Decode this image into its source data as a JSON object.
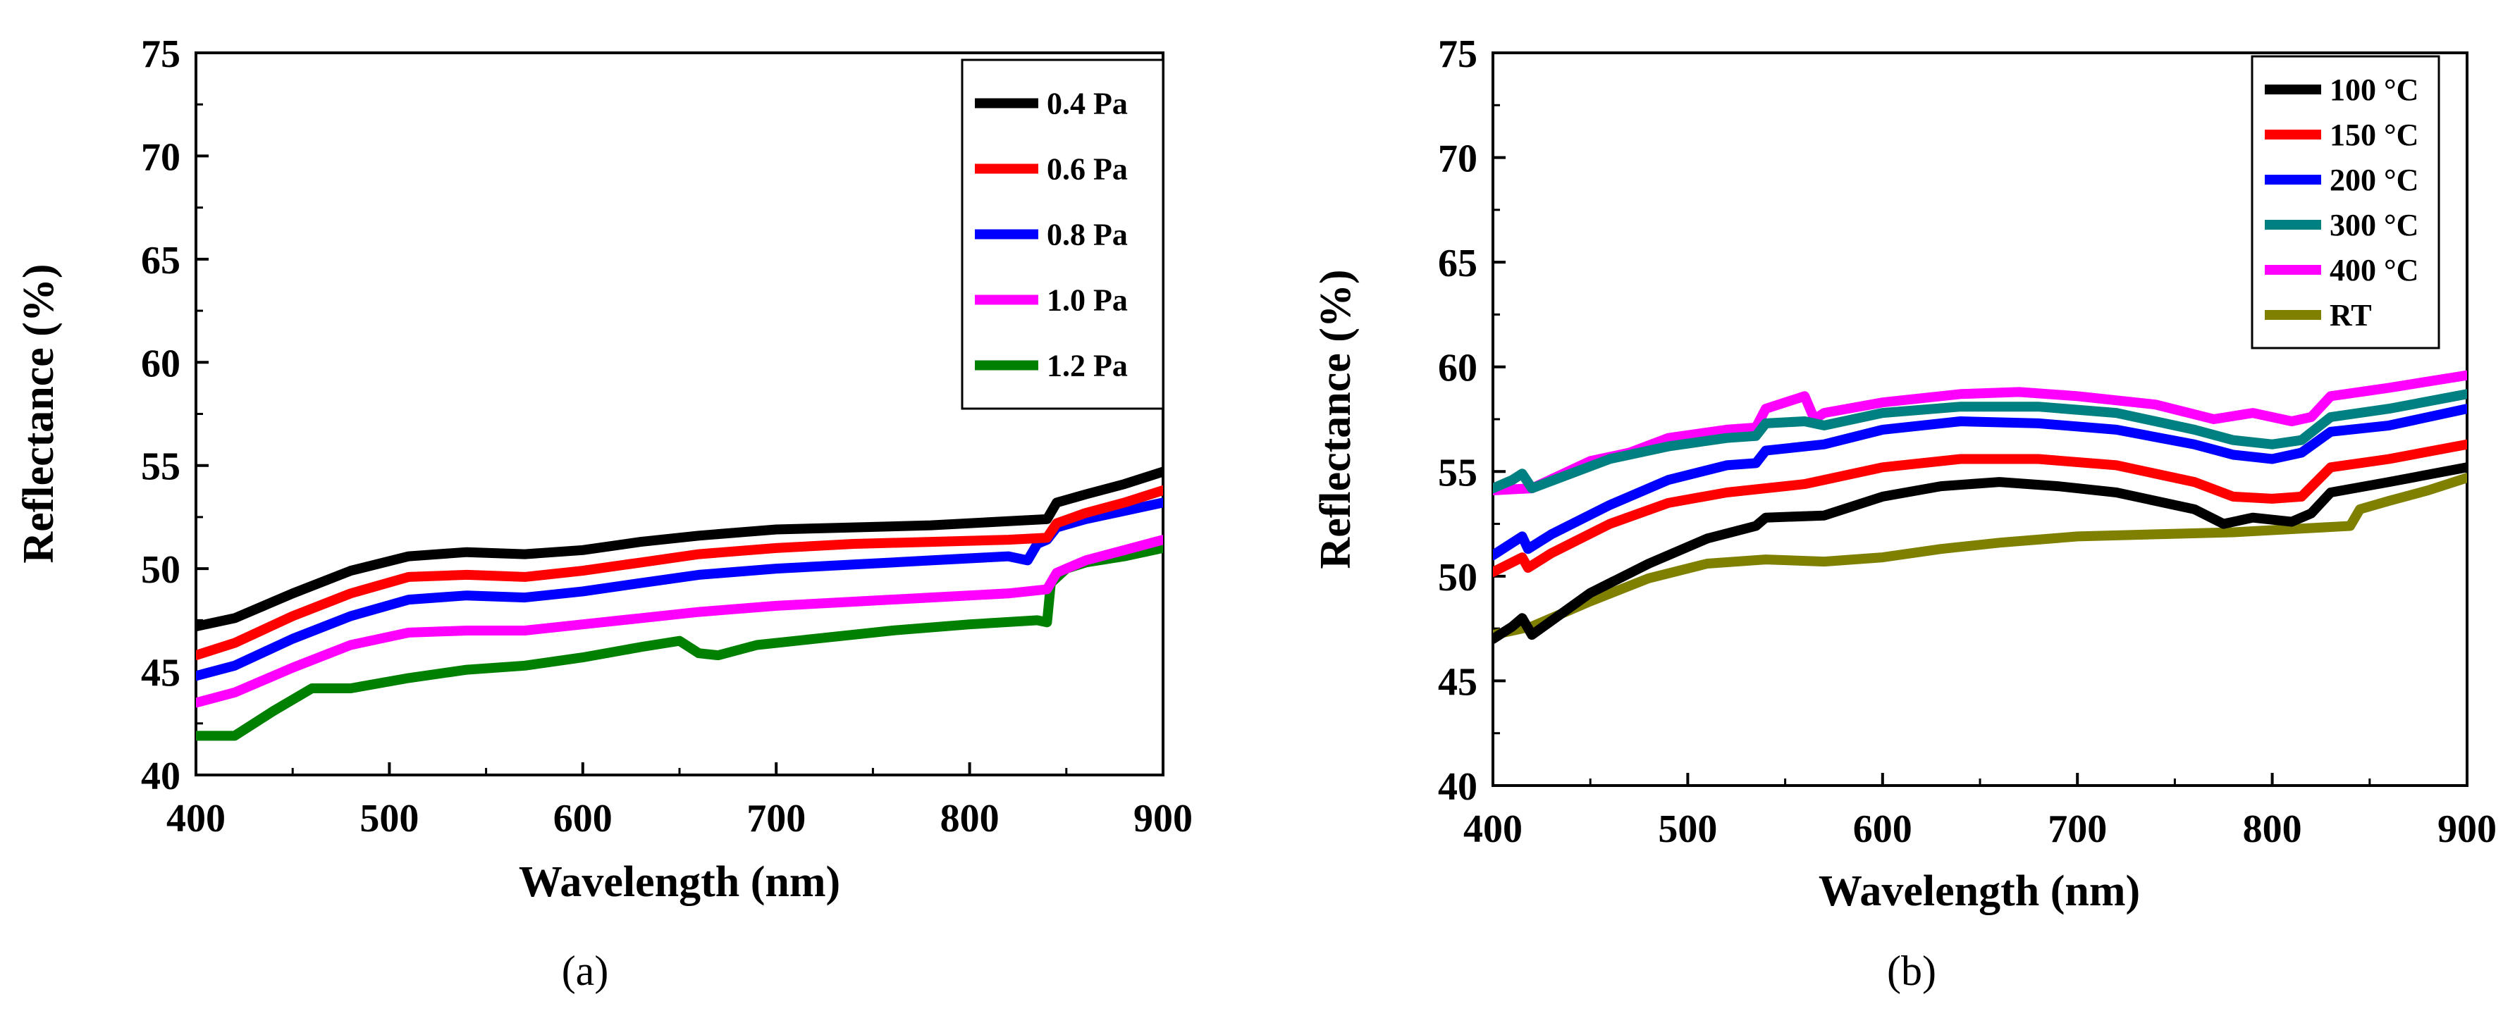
{
  "chart_data": [
    {
      "type": "line",
      "panel_label": "(a)",
      "xlabel": "Wavelength (nm)",
      "ylabel": "Reflectance (%)",
      "xlim": [
        400,
        900
      ],
      "ylim": [
        40,
        75
      ],
      "xticks": [
        400,
        500,
        600,
        700,
        800,
        900
      ],
      "yticks": [
        40,
        45,
        50,
        55,
        60,
        65,
        70,
        75
      ],
      "legend_position": "top-right",
      "grid": false,
      "series": [
        {
          "name": "0.4 Pa",
          "color": "#000000",
          "x": [
            400,
            420,
            450,
            480,
            510,
            540,
            570,
            600,
            630,
            660,
            700,
            740,
            780,
            820,
            840,
            845,
            860,
            880,
            900
          ],
          "y": [
            47.2,
            47.6,
            48.8,
            49.9,
            50.6,
            50.8,
            50.7,
            50.9,
            51.3,
            51.6,
            51.9,
            52.0,
            52.1,
            52.3,
            52.4,
            53.2,
            53.6,
            54.1,
            54.7
          ]
        },
        {
          "name": "0.6 Pa",
          "color": "#ff0000",
          "x": [
            400,
            420,
            450,
            480,
            510,
            540,
            570,
            600,
            630,
            660,
            700,
            740,
            780,
            820,
            840,
            845,
            860,
            880,
            900
          ],
          "y": [
            45.8,
            46.4,
            47.7,
            48.8,
            49.6,
            49.7,
            49.6,
            49.9,
            50.3,
            50.7,
            51.0,
            51.2,
            51.3,
            51.4,
            51.5,
            52.2,
            52.7,
            53.2,
            53.8
          ]
        },
        {
          "name": "0.8 Pa",
          "color": "#0000ff",
          "x": [
            400,
            420,
            450,
            480,
            510,
            540,
            570,
            600,
            630,
            660,
            700,
            740,
            780,
            820,
            830,
            835,
            840,
            845,
            860,
            880,
            900
          ],
          "y": [
            44.8,
            45.3,
            46.6,
            47.7,
            48.5,
            48.7,
            48.6,
            48.9,
            49.3,
            49.7,
            50.0,
            50.2,
            50.4,
            50.6,
            50.4,
            51.2,
            51.4,
            52.0,
            52.4,
            52.8,
            53.2
          ]
        },
        {
          "name": "1.0 Pa",
          "color": "#ff00ff",
          "x": [
            400,
            420,
            450,
            480,
            510,
            540,
            570,
            600,
            630,
            660,
            700,
            740,
            780,
            820,
            840,
            845,
            860,
            880,
            900
          ],
          "y": [
            43.5,
            44.0,
            45.2,
            46.3,
            46.9,
            47.0,
            47.0,
            47.3,
            47.6,
            47.9,
            48.2,
            48.4,
            48.6,
            48.8,
            49.0,
            49.8,
            50.4,
            50.9,
            51.4
          ]
        },
        {
          "name": "1.2 Pa",
          "color": "#008000",
          "x": [
            400,
            420,
            440,
            460,
            480,
            510,
            540,
            570,
            600,
            630,
            650,
            660,
            670,
            690,
            720,
            760,
            800,
            835,
            840,
            842,
            850,
            860,
            880,
            900
          ],
          "y": [
            41.9,
            41.9,
            43.1,
            44.2,
            44.2,
            44.7,
            45.1,
            45.3,
            45.7,
            46.2,
            46.5,
            45.9,
            45.8,
            46.3,
            46.6,
            47.0,
            47.3,
            47.5,
            47.4,
            49.3,
            50.0,
            50.3,
            50.6,
            51.0
          ]
        }
      ]
    },
    {
      "type": "line",
      "panel_label": "(b)",
      "xlabel": "Wavelength (nm)",
      "ylabel": "Reflectance (%)",
      "xlim": [
        400,
        900
      ],
      "ylim": [
        40,
        75
      ],
      "xticks": [
        400,
        500,
        600,
        700,
        800,
        900
      ],
      "yticks": [
        40,
        45,
        50,
        55,
        60,
        65,
        70,
        75
      ],
      "legend_position": "top-right",
      "grid": false,
      "series": [
        {
          "name": "100 °C",
          "color": "#000000",
          "x": [
            400,
            410,
            415,
            420,
            450,
            480,
            510,
            535,
            540,
            570,
            600,
            630,
            660,
            690,
            720,
            760,
            775,
            790,
            810,
            820,
            830,
            860,
            900
          ],
          "y": [
            47.0,
            47.6,
            48.0,
            47.2,
            49.2,
            50.6,
            51.8,
            52.4,
            52.8,
            52.9,
            53.8,
            54.3,
            54.5,
            54.3,
            54.0,
            53.2,
            52.5,
            52.8,
            52.6,
            53.0,
            54.0,
            54.5,
            55.2
          ]
        },
        {
          "name": "150 °C",
          "color": "#ff0000",
          "x": [
            400,
            415,
            418,
            430,
            460,
            490,
            520,
            560,
            600,
            640,
            680,
            720,
            760,
            780,
            800,
            815,
            830,
            860,
            900
          ],
          "y": [
            50.2,
            50.9,
            50.4,
            51.1,
            52.5,
            53.5,
            54.0,
            54.4,
            55.2,
            55.6,
            55.6,
            55.3,
            54.5,
            53.8,
            53.7,
            53.8,
            55.2,
            55.6,
            56.3
          ]
        },
        {
          "name": "200 °C",
          "color": "#0000ff",
          "x": [
            400,
            415,
            418,
            430,
            460,
            490,
            520,
            535,
            540,
            570,
            600,
            640,
            680,
            720,
            760,
            780,
            800,
            815,
            830,
            860,
            900
          ],
          "y": [
            51.0,
            51.9,
            51.3,
            52.0,
            53.4,
            54.6,
            55.3,
            55.4,
            56.0,
            56.3,
            57.0,
            57.4,
            57.3,
            57.0,
            56.3,
            55.8,
            55.6,
            55.9,
            56.9,
            57.2,
            58.0
          ]
        },
        {
          "name": "300 °C",
          "color": "#008080",
          "x": [
            400,
            410,
            415,
            420,
            460,
            490,
            520,
            535,
            540,
            560,
            570,
            600,
            640,
            680,
            720,
            760,
            780,
            800,
            815,
            830,
            860,
            900
          ],
          "y": [
            54.2,
            54.6,
            54.9,
            54.2,
            55.6,
            56.2,
            56.6,
            56.7,
            57.3,
            57.4,
            57.2,
            57.8,
            58.1,
            58.1,
            57.8,
            57.0,
            56.5,
            56.3,
            56.5,
            57.6,
            58.0,
            58.7
          ]
        },
        {
          "name": "400 °C",
          "color": "#ff00ff",
          "x": [
            400,
            420,
            450,
            470,
            490,
            520,
            535,
            540,
            560,
            565,
            570,
            600,
            640,
            670,
            700,
            740,
            770,
            790,
            810,
            820,
            830,
            860,
            900
          ],
          "y": [
            54.1,
            54.2,
            55.5,
            55.9,
            56.6,
            57.0,
            57.1,
            58.0,
            58.6,
            57.5,
            57.8,
            58.3,
            58.7,
            58.8,
            58.6,
            58.2,
            57.5,
            57.8,
            57.4,
            57.6,
            58.6,
            59.0,
            59.6
          ]
        },
        {
          "name": "RT",
          "color": "#808000",
          "x": [
            400,
            420,
            450,
            480,
            510,
            540,
            570,
            600,
            630,
            660,
            700,
            740,
            780,
            820,
            840,
            845,
            860,
            880,
            900
          ],
          "y": [
            47.2,
            47.6,
            48.8,
            49.9,
            50.6,
            50.8,
            50.7,
            50.9,
            51.3,
            51.6,
            51.9,
            52.0,
            52.1,
            52.3,
            52.4,
            53.2,
            53.6,
            54.1,
            54.7
          ]
        }
      ]
    }
  ]
}
